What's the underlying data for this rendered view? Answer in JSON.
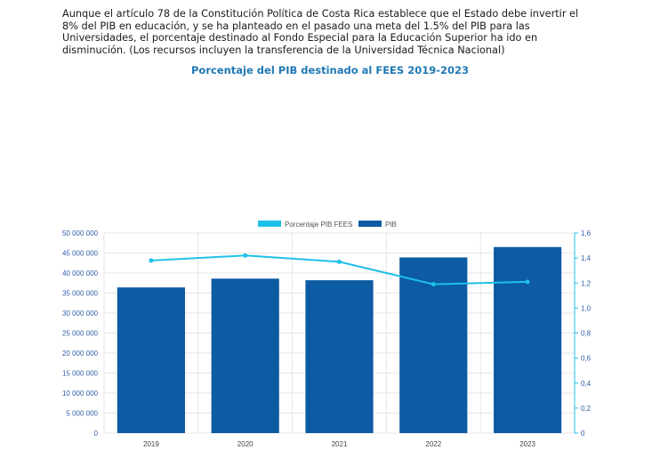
{
  "intro_text": "Aunque el artículo 78 de la Constitución Política de Costa Rica establece que el Estado debe invertir el 8% del PIB en educación, y se ha planteado en el pasado una meta del 1.5% del PIB para las Universidades, el porcentaje destinado al Fondo Especial para la Educación Superior ha ido en disminución. (Los recursos incluyen la transferencia de la Universidad Técnica Nacional)",
  "chart_data": {
    "type": "bar",
    "title": "Porcentaje del PIB destinado al FEES 2019-2023",
    "categories": [
      "2019",
      "2020",
      "2021",
      "2022",
      "2023"
    ],
    "series": [
      {
        "name": "PIB",
        "type": "bar",
        "axis": "left",
        "values": [
          36400000,
          38600000,
          38200000,
          43900000,
          46500000
        ]
      },
      {
        "name": "Porcentaje PIB FEES",
        "type": "line",
        "axis": "right",
        "values": [
          1.38,
          1.42,
          1.37,
          1.19,
          1.21
        ]
      }
    ],
    "ylim_left": [
      0,
      50000000
    ],
    "ylim_right": [
      0,
      1.6
    ],
    "left_ticks": [
      "0",
      "5 000 000",
      "10 000 000",
      "15 000 000",
      "20 000 000",
      "25 000 000",
      "30 000 000",
      "35 000 000",
      "40 000 000",
      "45 000 000",
      "50 000 000"
    ],
    "right_ticks": [
      "0",
      "0,2",
      "0,4",
      "0,6",
      "0,8",
      "1,0",
      "1,2",
      "1,4",
      "1,6"
    ],
    "legend_position": "top-center",
    "grid": true,
    "colors": {
      "bar": "#0c5ba3",
      "line": "#1ec0e8",
      "left_axis_text": "#2f5da8",
      "right_axis": "#1ec0e8",
      "grid": "#e6e6e6"
    }
  }
}
